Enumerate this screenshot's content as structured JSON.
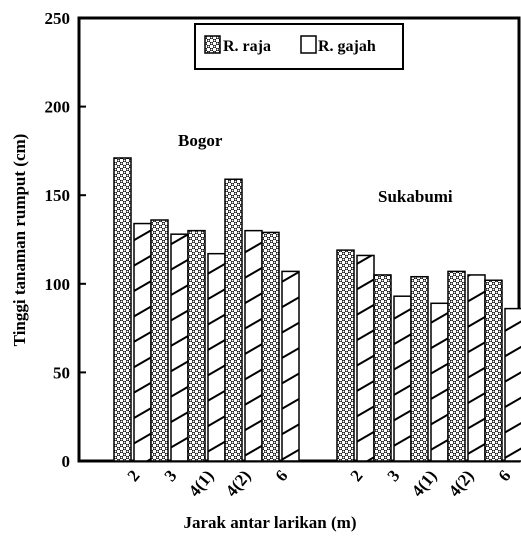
{
  "chart_data": {
    "type": "bar",
    "xlabel": "Jarak antar larikan (m)",
    "ylabel": "Tinggi tanaman rumput (cm)",
    "ylim": [
      0,
      250
    ],
    "yticks": [
      0,
      50,
      100,
      150,
      200,
      250
    ],
    "grid": false,
    "legend_position": "top-center",
    "series": [
      {
        "name": "R. raja",
        "pattern": "crosshatch",
        "color": "#000000"
      },
      {
        "name": "R. gajah",
        "pattern": "diagonal",
        "color": "#000000"
      }
    ],
    "groups": [
      {
        "label": "Bogor",
        "categories": [
          "2",
          "3",
          "4(1)",
          "4(2)",
          "6"
        ],
        "values": {
          "R. raja": [
            171,
            136,
            130,
            159,
            129
          ],
          "R. gajah": [
            134,
            128,
            117,
            130,
            107
          ]
        }
      },
      {
        "label": "Sukabumi",
        "categories": [
          "2",
          "3",
          "4(1)",
          "4(2)",
          "6"
        ],
        "values": {
          "R. raja": [
            119,
            105,
            104,
            107,
            102
          ],
          "R. gajah": [
            116,
            93,
            89,
            105,
            86
          ]
        }
      }
    ]
  }
}
